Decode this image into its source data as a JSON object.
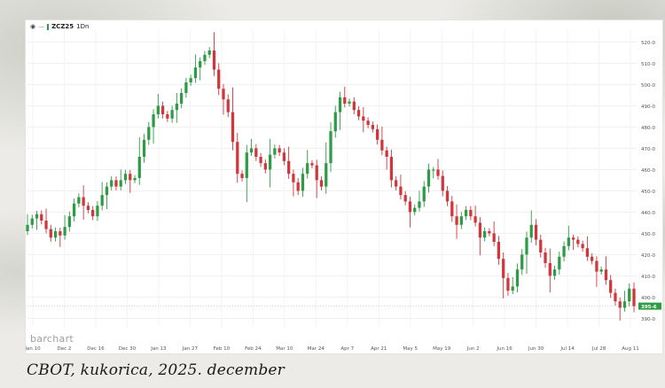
{
  "caption": "CBOT, kukorica, 2025. december",
  "legend": {
    "symbol": "ZCZ25",
    "interval": "1Dn",
    "marker": "—"
  },
  "brand": "barchart",
  "chart_data": {
    "type": "candlestick",
    "x_tick_labels": [
      "Jan 10",
      "Dec 2",
      "Dec 16",
      "Dec 30",
      "Jan 13",
      "Jan 27",
      "Feb 10",
      "Feb 24",
      "Mar 10",
      "Mar 24",
      "Apr 7",
      "Apr 21",
      "May 5",
      "May 19",
      "Jun 2",
      "Jun 16",
      "Jun 30",
      "Jul 14",
      "Jul 28",
      "Aug 11"
    ],
    "y_tick_labels": [
      "390-0",
      "400-0",
      "410-0",
      "420-0",
      "430-0",
      "440-0",
      "450-0",
      "460-0",
      "470-0",
      "480-0",
      "490-0",
      "500-0",
      "510-0",
      "520-0"
    ],
    "ylim": [
      386,
      526
    ],
    "last_price_label": "395-6",
    "last_price": 395.75,
    "colors": {
      "up": "#2e9c45",
      "down": "#d2353a",
      "last_price": "#2e9c45"
    },
    "closes": [
      434,
      437,
      439,
      436,
      432,
      428,
      431,
      429,
      433,
      438,
      444,
      447,
      443,
      441,
      438,
      443,
      448,
      452,
      455,
      452,
      455,
      458,
      455,
      456,
      466,
      474,
      480,
      486,
      490,
      486,
      484,
      488,
      491,
      496,
      501,
      503,
      508,
      511,
      514,
      516,
      507,
      498,
      493,
      487,
      473,
      458,
      456,
      468,
      470,
      466,
      463,
      460,
      467,
      470,
      468,
      464,
      458,
      454,
      450,
      458,
      463,
      462,
      455,
      452,
      463,
      478,
      487,
      494,
      491,
      492,
      488,
      485,
      483,
      481,
      479,
      474,
      469,
      466,
      455,
      452,
      448,
      445,
      440,
      442,
      445,
      452,
      460,
      460,
      457,
      450,
      445,
      438,
      434,
      438,
      441,
      438,
      435,
      428,
      431,
      430,
      426,
      418,
      409,
      403,
      405,
      413,
      420,
      428,
      434,
      427,
      421,
      416,
      410,
      413,
      419,
      424,
      428,
      427,
      425,
      423,
      419,
      417,
      412,
      413,
      408,
      402,
      398,
      395,
      398,
      404,
      395.75
    ]
  }
}
